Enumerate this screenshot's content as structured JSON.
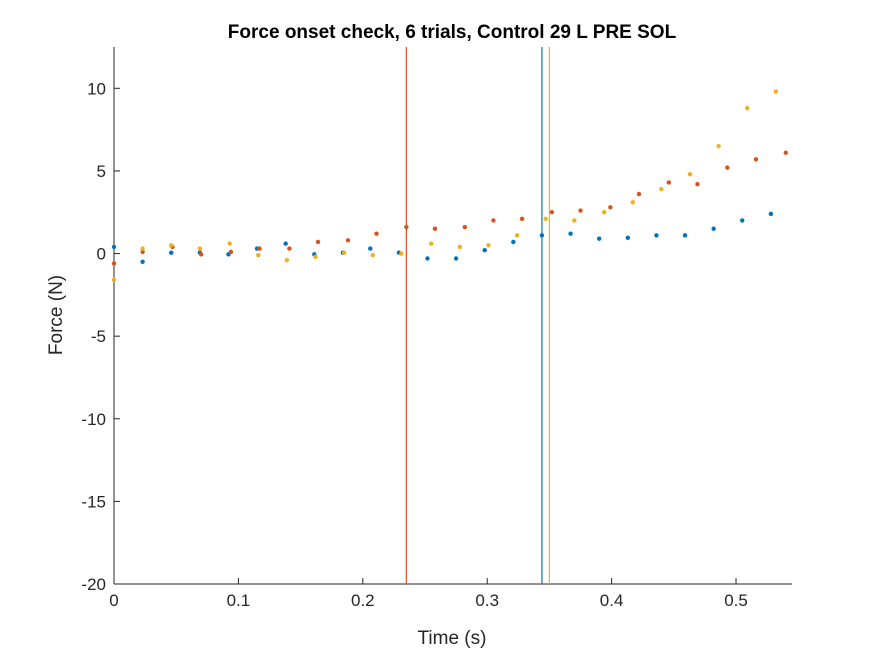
{
  "chart_data": {
    "type": "scatter",
    "title": "Force onset check, 6 trials, Control 29 L PRE SOL",
    "xlabel": "Time (s)",
    "ylabel": "Force (N)",
    "xlim": [
      0,
      0.545
    ],
    "ylim": [
      -20,
      12.5
    ],
    "xticks": [
      0,
      0.1,
      0.2,
      0.3,
      0.4,
      0.5
    ],
    "xtick_labels": [
      "0",
      "0.1",
      "0.2",
      "0.3",
      "0.4",
      "0.5"
    ],
    "yticks": [
      -20,
      -15,
      -10,
      -5,
      0,
      5,
      10
    ],
    "ytick_labels": [
      "-20",
      "-15",
      "-10",
      "-5",
      "0",
      "5",
      "10"
    ],
    "grid": false,
    "legend": "none",
    "series": [
      {
        "color": "#0072BD",
        "x": [
          0.0,
          0.023,
          0.046,
          0.069,
          0.092,
          0.115,
          0.138,
          0.161,
          0.184,
          0.206,
          0.229,
          0.252,
          0.275,
          0.298,
          0.321,
          0.344,
          0.367,
          0.39,
          0.413,
          0.436,
          0.459,
          0.482,
          0.505,
          0.528
        ],
        "y": [
          0.4,
          -0.5,
          0.05,
          0.05,
          -0.05,
          0.3,
          0.6,
          -0.05,
          0.05,
          0.3,
          0.05,
          -0.3,
          -0.3,
          0.2,
          0.7,
          1.1,
          1.2,
          0.9,
          0.95,
          1.1,
          1.1,
          1.5,
          2.0,
          2.4
        ],
        "onset": 0.344
      },
      {
        "color": "#D95319",
        "x": [
          0.0,
          0.023,
          0.047,
          0.07,
          0.094,
          0.117,
          0.141,
          0.164,
          0.188,
          0.211,
          0.235,
          0.258,
          0.282,
          0.305,
          0.328,
          0.352,
          0.375,
          0.399,
          0.422,
          0.446,
          0.469,
          0.493,
          0.516,
          0.54
        ],
        "y": [
          -0.6,
          0.1,
          0.4,
          -0.05,
          0.1,
          0.3,
          0.3,
          0.7,
          0.8,
          1.2,
          1.6,
          1.5,
          1.6,
          2.0,
          2.1,
          2.5,
          2.6,
          2.8,
          3.6,
          4.3,
          4.2,
          5.2,
          5.7,
          6.1
        ],
        "onset": 0.235
      },
      {
        "color": "#EDB120",
        "x": [
          0.0,
          0.023,
          0.046,
          0.069,
          0.093,
          0.116,
          0.139,
          0.162,
          0.185,
          0.208,
          0.231,
          0.255,
          0.278,
          0.301,
          0.324,
          0.347,
          0.37,
          0.394,
          0.417,
          0.44,
          0.463,
          0.486,
          0.509,
          0.532
        ],
        "y": [
          -1.6,
          0.3,
          0.5,
          0.3,
          0.6,
          -0.1,
          -0.4,
          -0.2,
          0.05,
          -0.1,
          0.0,
          0.6,
          0.4,
          0.5,
          1.1,
          2.1,
          2.0,
          2.5,
          3.1,
          3.9,
          4.8,
          6.5,
          8.8,
          9.8
        ],
        "onset": 0.35
      }
    ]
  }
}
